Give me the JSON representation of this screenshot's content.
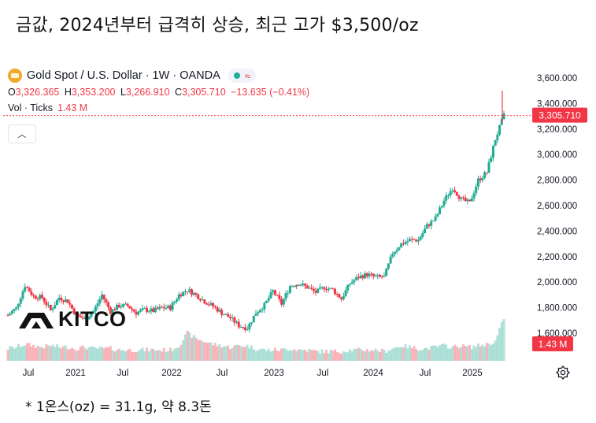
{
  "headline": "금값, 2024년부터 급격히 상승, 최근 고가 $3,500/oz",
  "footnote": "* 1온스(oz) = 31.1g, 약 8.3돈",
  "legend": {
    "symbol": "Gold Spot / U.S. Dollar · 1W · OANDA",
    "icon": "gold-coin-icon",
    "open_label": "O",
    "open": "3,326.365",
    "high_label": "H",
    "high": "3,353.200",
    "low_label": "L",
    "low": "3,266.910",
    "close_label": "C",
    "close": "3,305.710",
    "change": "−13.635 (−0.41%)",
    "vol_label": "Vol · Ticks",
    "vol_value": "1.43 M"
  },
  "watermark": "KITCO",
  "colors": {
    "up": "#22ab94",
    "down": "#f23645",
    "last_price": "#f23645"
  },
  "chart_data": {
    "type": "candlestick",
    "series": [
      {
        "name": "Gold Spot / U.S. Dollar"
      }
    ],
    "x": [
      "2020-06",
      "2020-07",
      "2020-08",
      "2020-09",
      "2020-10",
      "2020-11",
      "2020-12",
      "2021-01",
      "2021-02",
      "2021-03",
      "2021-04",
      "2021-05",
      "2021-06",
      "2021-07",
      "2021-08",
      "2021-09",
      "2021-10",
      "2021-11",
      "2021-12",
      "2022-01",
      "2022-02",
      "2022-03",
      "2022-04",
      "2022-05",
      "2022-06",
      "2022-07",
      "2022-08",
      "2022-09",
      "2022-10",
      "2022-11",
      "2022-12",
      "2023-01",
      "2023-02",
      "2023-03",
      "2023-04",
      "2023-05",
      "2023-06",
      "2023-07",
      "2023-08",
      "2023-09",
      "2023-10",
      "2023-11",
      "2023-12",
      "2024-01",
      "2024-02",
      "2024-03",
      "2024-04",
      "2024-05",
      "2024-06",
      "2024-07",
      "2024-08",
      "2024-09",
      "2024-10",
      "2024-11",
      "2024-12",
      "2025-01",
      "2025-02",
      "2025-03",
      "2025-04"
    ],
    "values": [
      1740,
      1800,
      1975,
      1890,
      1880,
      1780,
      1880,
      1850,
      1740,
      1710,
      1770,
      1900,
      1770,
      1815,
      1815,
      1760,
      1785,
      1775,
      1800,
      1800,
      1900,
      1940,
      1900,
      1850,
      1810,
      1760,
      1720,
      1660,
      1640,
      1760,
      1820,
      1930,
      1830,
      1970,
      1990,
      1960,
      1920,
      1960,
      1940,
      1870,
      1990,
      2040,
      2060,
      2040,
      2040,
      2230,
      2300,
      2330,
      2330,
      2440,
      2500,
      2640,
      2740,
      2650,
      2620,
      2800,
      2860,
      3120,
      3305
    ],
    "volumes": [
      0.35,
      0.4,
      0.5,
      0.45,
      0.4,
      0.45,
      0.4,
      0.4,
      0.35,
      0.4,
      0.35,
      0.35,
      0.35,
      0.3,
      0.3,
      0.3,
      0.3,
      0.3,
      0.3,
      0.3,
      0.45,
      0.9,
      0.7,
      0.6,
      0.5,
      0.45,
      0.4,
      0.45,
      0.45,
      0.35,
      0.3,
      0.3,
      0.3,
      0.35,
      0.3,
      0.3,
      0.25,
      0.25,
      0.25,
      0.25,
      0.3,
      0.3,
      0.3,
      0.3,
      0.25,
      0.35,
      0.45,
      0.4,
      0.35,
      0.35,
      0.4,
      0.45,
      0.4,
      0.45,
      0.4,
      0.45,
      0.5,
      0.6,
      1.43
    ],
    "x_ticks": [
      "Jul",
      "2021",
      "Jul",
      "2022",
      "Jul",
      "2023",
      "Jul",
      "2024",
      "Jul",
      "2025"
    ],
    "y_ticks": [
      "3,600.000",
      "3,400.000",
      "3,200.000",
      "3,000.000",
      "2,800.000",
      "2,600.000",
      "2,400.000",
      "2,200.000",
      "2,000.000",
      "1,800.000",
      "1,600.000"
    ],
    "ylim": [
      1520,
      3640
    ],
    "last_price": "3,305.710",
    "last_volume": "1.43 M",
    "recent_high": 3500,
    "title": "",
    "xlabel": "",
    "ylabel": ""
  }
}
